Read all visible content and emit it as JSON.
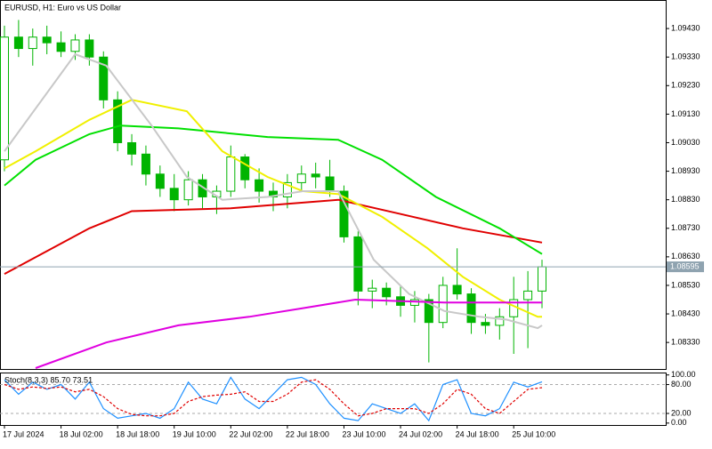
{
  "chart_data": [
    {
      "type": "candlestick",
      "title": "EURUSD, H1:  Euro vs US Dollar",
      "color": "#00b400",
      "categories": [
        "17 Jul 2024",
        null,
        null,
        null,
        "18 Jul 02:00",
        null,
        null,
        null,
        "18 Jul 18:00",
        null,
        null,
        null,
        "19 Jul 10:00",
        null,
        null,
        null,
        "22 Jul 02:00",
        null,
        null,
        null,
        "22 Jul 18:00",
        null,
        null,
        null,
        "23 Jul 10:00",
        null,
        null,
        null,
        "24 Jul 02:00",
        null,
        null,
        null,
        "24 Jul 18:00",
        null,
        null,
        null,
        "25 Jul 10:00",
        null,
        null
      ],
      "open": [
        1.0897,
        1.094,
        1.0936,
        1.094,
        1.0938,
        1.0935,
        1.0939,
        1.0933,
        1.0918,
        1.0903,
        1.0899,
        1.0892,
        1.0887,
        1.0883,
        1.089,
        1.0884,
        1.0886,
        1.0898,
        1.089,
        1.0886,
        1.0884,
        1.0889,
        1.0892,
        1.0891,
        1.0886,
        1.087,
        1.0851,
        1.0852,
        1.0849,
        1.0846,
        1.0848,
        1.084,
        1.0853,
        1.085,
        1.084,
        1.0839,
        1.0842,
        1.0848,
        1.0851
      ],
      "high": [
        1.0944,
        1.0946,
        1.0943,
        1.0944,
        1.0942,
        1.0941,
        1.0941,
        1.0935,
        1.0921,
        1.0906,
        1.0902,
        1.0895,
        1.0892,
        1.0893,
        1.0892,
        1.0888,
        1.0902,
        1.0899,
        1.0894,
        1.0889,
        1.0892,
        1.0895,
        1.0896,
        1.0897,
        1.0888,
        1.0872,
        1.0855,
        1.0854,
        1.0853,
        1.0851,
        1.085,
        1.0856,
        1.0866,
        1.0852,
        1.0843,
        1.0845,
        1.0856,
        1.0858,
        1.0862
      ],
      "low": [
        1.0893,
        1.0933,
        1.093,
        1.0934,
        1.0933,
        1.0932,
        1.093,
        1.0915,
        1.09,
        1.0895,
        1.0888,
        1.0884,
        1.0879,
        1.0881,
        1.088,
        1.0878,
        1.0884,
        1.0887,
        1.0882,
        1.0879,
        1.088,
        1.0886,
        1.0887,
        1.0884,
        1.0868,
        1.0846,
        1.0845,
        1.0846,
        1.0842,
        1.084,
        1.0826,
        1.0838,
        1.0848,
        1.0836,
        1.0836,
        1.0834,
        1.0829,
        1.0831,
        1.0845
      ],
      "close": [
        1.094,
        1.0936,
        1.094,
        1.0938,
        1.0935,
        1.0939,
        1.0933,
        1.0918,
        1.0903,
        1.0899,
        1.0892,
        1.0887,
        1.0883,
        1.089,
        1.0884,
        1.0886,
        1.0898,
        1.089,
        1.0886,
        1.0884,
        1.0889,
        1.0892,
        1.0891,
        1.0886,
        1.087,
        1.0851,
        1.0852,
        1.0849,
        1.0846,
        1.0848,
        1.084,
        1.0853,
        1.085,
        1.084,
        1.0839,
        1.0842,
        1.0848,
        1.0851,
        1.08595
      ],
      "series": [
        {
          "color": "#e00000",
          "x": [
            0,
            6,
            9,
            16,
            23.6,
            28,
            32.4,
            38
          ],
          "values": [
            1.0857,
            1.0873,
            1.0879,
            1.088,
            1.0883,
            1.0878,
            1.0873,
            1.0868
          ]
        },
        {
          "color": "#00e000",
          "x": [
            0,
            2.2,
            6,
            8.2,
            12.3,
            18.6,
            23.6,
            26.7,
            30.5,
            35,
            38
          ],
          "values": [
            1.0888,
            1.0897,
            1.0906,
            1.0909,
            1.0908,
            1.0905,
            1.0904,
            1.0897,
            1.0884,
            1.0873,
            1.0864
          ]
        },
        {
          "color": "#f0f000",
          "x": [
            0,
            2.2,
            6,
            9,
            12.9,
            15.4,
            18.6,
            21.1,
            23.6,
            26.7,
            29.9,
            32.4,
            35,
            37.7,
            38
          ],
          "values": [
            1.0894,
            1.09,
            1.0911,
            1.0918,
            1.0914,
            1.09,
            1.0891,
            1.0886,
            1.0885,
            1.0877,
            1.0866,
            1.0856,
            1.0848,
            1.0842,
            1.0842
          ]
        },
        {
          "color": "#c8c8c8",
          "x": [
            0,
            5,
            7.2,
            10.4,
            12.9,
            15.4,
            18.6,
            21.1,
            23.6,
            26.1,
            28.6,
            31.1,
            33.6,
            35.5,
            37.7,
            38
          ],
          "values": [
            1.09,
            1.0934,
            1.093,
            1.0909,
            1.0891,
            1.0883,
            1.0884,
            1.0886,
            1.0886,
            1.0862,
            1.085,
            1.0844,
            1.0842,
            1.0841,
            1.0838,
            1.0839
          ]
        },
        {
          "color": "#e000e0",
          "x": [
            2.2,
            7.2,
            12.3,
            17.3,
            21.1,
            24.8,
            31.1,
            38
          ],
          "values": [
            1.0824,
            1.0833,
            1.0839,
            1.0842,
            1.0845,
            1.0848,
            1.0847,
            1.0847
          ]
        }
      ],
      "last_price": 1.08595,
      "ylim": [
        1.08237,
        1.0953
      ],
      "yticks": [
        {
          "value": 1.0943,
          "label": "1.09430"
        },
        {
          "value": 1.0933,
          "label": "1.09330"
        },
        {
          "value": 1.0923,
          "label": "1.09230"
        },
        {
          "value": 1.0913,
          "label": "1.09130"
        },
        {
          "value": 1.0903,
          "label": "1.09030"
        },
        {
          "value": 1.0893,
          "label": "1.08930"
        },
        {
          "value": 1.0883,
          "label": "1.08830"
        },
        {
          "value": 1.0873,
          "label": "1.08730"
        },
        {
          "value": 1.0863,
          "label": "1.08630"
        },
        {
          "value": 1.0853,
          "label": "1.08530"
        },
        {
          "value": 1.0843,
          "label": "1.08430"
        },
        {
          "value": 1.0833,
          "label": "1.08330"
        }
      ],
      "grid": false
    },
    {
      "type": "line",
      "title": "Stoch(8,3,3) 85.70 73.51",
      "series": [
        {
          "color": "#1e90ff",
          "dash": false,
          "values": [
            90,
            60,
            85,
            70,
            80,
            50,
            85,
            30,
            10,
            15,
            20,
            10,
            30,
            85,
            50,
            40,
            95,
            50,
            30,
            60,
            90,
            95,
            80,
            40,
            10,
            5,
            40,
            30,
            20,
            40,
            5,
            80,
            90,
            20,
            15,
            30,
            85,
            75,
            85.7
          ]
        },
        {
          "color": "#e00000",
          "dash": true,
          "values": [
            80,
            70,
            75,
            72,
            75,
            65,
            70,
            55,
            30,
            18,
            15,
            15,
            20,
            45,
            55,
            58,
            60,
            65,
            45,
            45,
            60,
            85,
            90,
            70,
            40,
            15,
            20,
            30,
            30,
            30,
            20,
            40,
            70,
            60,
            30,
            20,
            45,
            70,
            73.51
          ]
        }
      ],
      "levels": [
        80,
        20
      ],
      "ylim": [
        -4,
        105
      ],
      "yticks": [
        {
          "value": 100,
          "label": "100.00"
        },
        {
          "value": 80,
          "label": "80.00"
        },
        {
          "value": 20,
          "label": "20.00"
        },
        {
          "value": 0,
          "label": "0.00"
        }
      ]
    }
  ]
}
